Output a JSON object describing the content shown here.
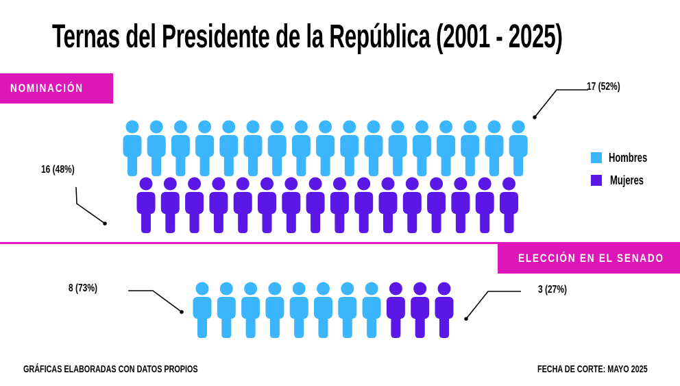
{
  "title": "Ternas del Presidente de la República (2001 - 2025)",
  "colors": {
    "hombres": "#3bb6fd",
    "mujeres": "#5a17e6",
    "accent": "#dc16b7",
    "line": "#000000"
  },
  "legend": [
    {
      "label": "Hombres",
      "color": "#3bb6fd"
    },
    {
      "label": "Mujeres",
      "color": "#5a17e6"
    }
  ],
  "sections": {
    "nominacion": {
      "label": "NOMINACIÓN",
      "hombres_label": "17 (52%)",
      "mujeres_label": "16 (48%)"
    },
    "senado": {
      "label": "ELECCIÓN EN EL SENADO",
      "hombres_label": "8 (73%)",
      "mujeres_label": "3 (27%)"
    }
  },
  "footer": {
    "source": "GRÁFICAS ELABORADAS CON DATOS PROPIOS",
    "date": "FECHA DE CORTE: MAYO 2025"
  },
  "chart_data": [
    {
      "type": "pictograph",
      "title": "NOMINACIÓN",
      "categories": [
        "Hombres",
        "Mujeres"
      ],
      "values": [
        17,
        16
      ],
      "percentages": [
        52,
        48
      ],
      "unit_icon": "person-icon"
    },
    {
      "type": "pictograph",
      "title": "ELECCIÓN EN EL SENADO",
      "categories": [
        "Hombres",
        "Mujeres"
      ],
      "values": [
        8,
        3
      ],
      "percentages": [
        73,
        27
      ],
      "unit_icon": "person-icon"
    }
  ]
}
